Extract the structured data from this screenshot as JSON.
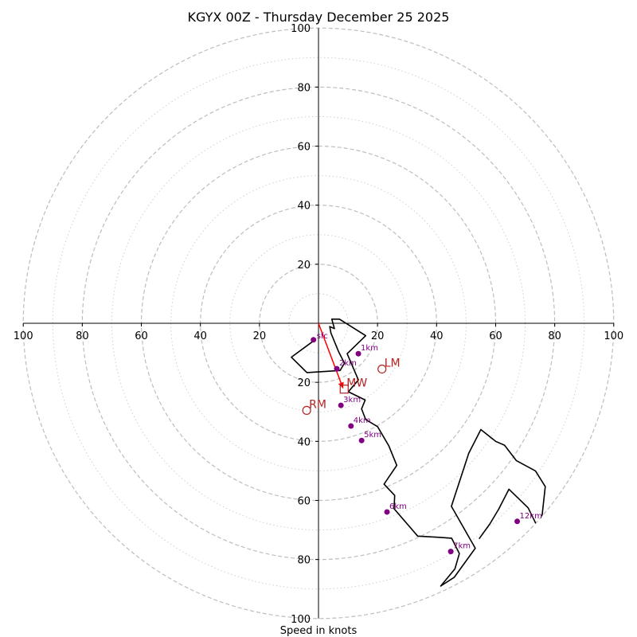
{
  "chart_data": {
    "type": "line",
    "title": "KGYX 00Z - Thursday December 25 2025",
    "xlabel": "Speed in knots",
    "ylabel": "",
    "xlim": [
      -100,
      100
    ],
    "ylim": [
      -100,
      100
    ],
    "rings_major": [
      20,
      40,
      60,
      80,
      100
    ],
    "rings_minor": [
      10,
      30,
      50,
      70,
      90
    ],
    "x_ticks": [
      {
        "v": -100,
        "label": "100"
      },
      {
        "v": -80,
        "label": "80"
      },
      {
        "v": -60,
        "label": "60"
      },
      {
        "v": -40,
        "label": "40"
      },
      {
        "v": -20,
        "label": "20"
      },
      {
        "v": 20,
        "label": "20"
      },
      {
        "v": 40,
        "label": "40"
      },
      {
        "v": 60,
        "label": "60"
      },
      {
        "v": 80,
        "label": "80"
      },
      {
        "v": 100,
        "label": "100"
      }
    ],
    "y_ticks": [
      {
        "v": 80,
        "label": "80"
      },
      {
        "v": 60,
        "label": "60"
      },
      {
        "v": 40,
        "label": "40"
      },
      {
        "v": 20,
        "label": "20"
      },
      {
        "v": -20,
        "label": "20"
      },
      {
        "v": -40,
        "label": "40"
      },
      {
        "v": -60,
        "label": "60"
      },
      {
        "v": -80,
        "label": "80"
      }
    ],
    "y_top_label": "100",
    "y_bottom_label": "100",
    "hodograph": {
      "color": "#000000",
      "u": [
        -1.7,
        -9.2,
        -3.9,
        7.3,
        8.8,
        6.8,
        4.2,
        3.8,
        5.4,
        4.5,
        7.1,
        16.0,
        9.7,
        13.5,
        10.1,
        15.8,
        14.6,
        16.0,
        20.0,
        23.8,
        26.5,
        22.2,
        25.8,
        25.6,
        33.6,
        40.8,
        45.1,
        47.7,
        46.2,
        41.4,
        46.0,
        53.1,
        45.0,
        50.9,
        55.0,
        60.0,
        63.0,
        67.0,
        73.5,
        76.8,
        75.2,
        77.0,
        71.0,
        64.5,
        61.0,
        58.0,
        54.4
      ],
      "v": [
        -6.0,
        -11.5,
        -16.7,
        -16.0,
        -13.5,
        -9.6,
        -3.3,
        -1.1,
        -1.8,
        1.4,
        1.4,
        -4.2,
        -10.3,
        -19.2,
        -23.2,
        -26.0,
        -29.0,
        -32.6,
        -35.0,
        -41.5,
        -48.1,
        -54.5,
        -58.3,
        -62.8,
        -72.1,
        -72.5,
        -72.8,
        -78.0,
        -83.2,
        -89.0,
        -86.0,
        -76.2,
        -62.0,
        -44.0,
        -36.0,
        -40.0,
        -41.3,
        -46.5,
        -50.0,
        -55.3,
        -70.0,
        -74.7,
        -62.5,
        -56.2,
        -63.0,
        -68.0,
        -73.0
      ]
    },
    "height_markers": {
      "color": "#800080",
      "points": [
        {
          "label": "1km",
          "u": 13.5,
          "v": -10.3
        },
        {
          "label": "2km",
          "u": 6.2,
          "v": -15.4
        },
        {
          "label": "3km",
          "u": 7.6,
          "v": -27.8
        },
        {
          "label": "4km",
          "u": 11.0,
          "v": -34.8
        },
        {
          "label": "5km",
          "u": 14.6,
          "v": -39.7
        },
        {
          "label": "6km",
          "u": 23.2,
          "v": -63.9
        },
        {
          "label": "7km",
          "u": 44.8,
          "v": -77.3
        },
        {
          "label": "12km",
          "u": 67.3,
          "v": -67.1
        }
      ],
      "sfc": {
        "label": "sfc",
        "u": -1.7,
        "v": -5.6
      }
    },
    "storm_motion": [
      {
        "label": "LM",
        "u": 21.5,
        "v": -15.5,
        "shape": "circle"
      },
      {
        "label": "RM",
        "u": -4.0,
        "v": -29.5,
        "shape": "circle"
      },
      {
        "label": "MW",
        "u": 8.7,
        "v": -22.3,
        "shape": "square"
      }
    ],
    "marker_color": "#b22222",
    "shear_vector": {
      "from_u": 0,
      "from_v": 0,
      "to_u": 8.3,
      "to_v": -22.0,
      "color": "#ff0000"
    },
    "grid": true,
    "legend": "none"
  }
}
